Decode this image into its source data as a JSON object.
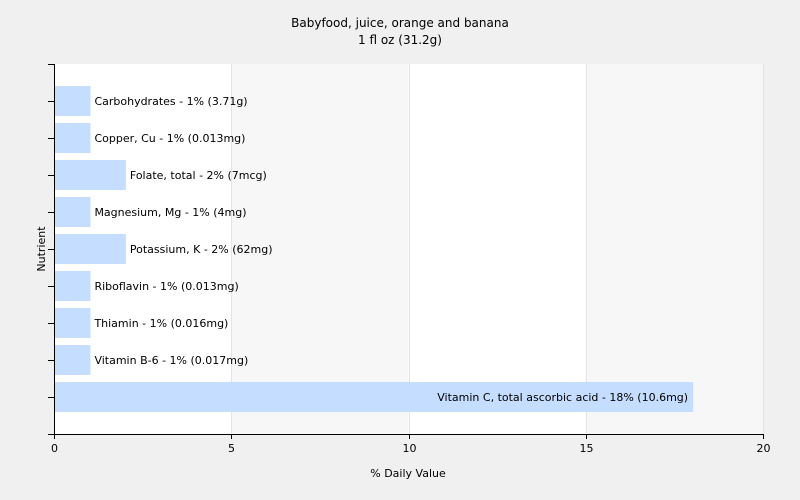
{
  "chart_data": {
    "type": "bar",
    "orientation": "horizontal",
    "title": "Babyfood, juice, orange and banana",
    "subtitle": "1 fl oz (31.2g)",
    "xlabel": "% Daily Value",
    "ylabel": "Nutrient",
    "xlim": [
      0,
      20
    ],
    "xticks": [
      0,
      5,
      10,
      15,
      20
    ],
    "grid": true,
    "bar_color": "#c5deff",
    "categories": [
      "Carbohydrates",
      "Copper, Cu",
      "Folate, total",
      "Magnesium, Mg",
      "Potassium, K",
      "Riboflavin",
      "Thiamin",
      "Vitamin B-6",
      "Vitamin C, total ascorbic acid"
    ],
    "values": [
      1,
      1,
      2,
      1,
      2,
      1,
      1,
      1,
      18
    ],
    "bar_labels": [
      "Carbohydrates - 1% (3.71g)",
      "Copper, Cu - 1% (0.013mg)",
      "Folate, total - 2% (7mcg)",
      "Magnesium, Mg - 1% (4mg)",
      "Potassium, K - 2% (62mg)",
      "Riboflavin - 1% (0.013mg)",
      "Thiamin - 1% (0.016mg)",
      "Vitamin B-6 - 1% (0.017mg)",
      "Vitamin C, total ascorbic acid - 18% (10.6mg)"
    ]
  }
}
